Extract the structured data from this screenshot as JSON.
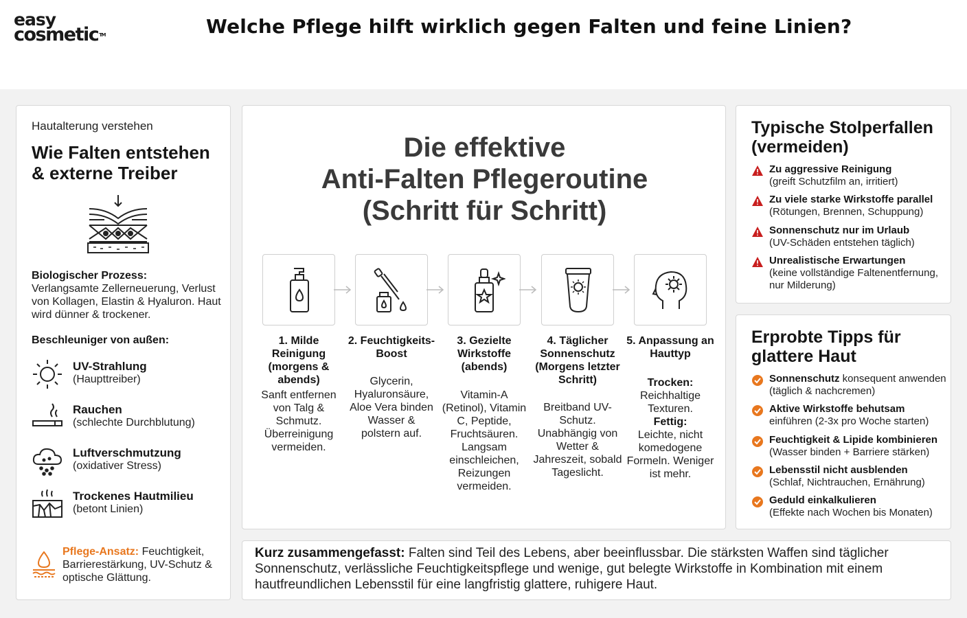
{
  "brand": {
    "line1": "easy",
    "line2": "cosmetic",
    "tm": "TM"
  },
  "header": {
    "title": "Welche Pflege hilft wirklich gegen Falten und feine Linien?"
  },
  "left": {
    "kicker": "Hautalterung verstehen",
    "title": "Wie Falten entstehen & externe Treiber",
    "bio_label": "Biologischer Prozess:",
    "bio_text": "Verlangsamte Zellerneuerung, Verlust von Kollagen, Elastin & Hyaluron. Haut wird dünner & trockener.",
    "accel_title": "Beschleuniger von außen:",
    "drivers": [
      {
        "icon": "sun-icon",
        "title": "UV-Strahlung",
        "sub": "(Haupttreiber)"
      },
      {
        "icon": "cigarette-icon",
        "title": "Rauchen",
        "sub": "(schlechte Durchblutung)"
      },
      {
        "icon": "smog-cloud-icon",
        "title": "Luftverschmutzung",
        "sub": "(oxidativer Stress)"
      },
      {
        "icon": "dry-skin-icon",
        "title": "Trockenes Hautmilieu",
        "sub": "(betont Linien)"
      }
    ],
    "care_label": "Pflege-Ansatz:",
    "care_text": "Feuchtigkeit, Barrierestärkung, UV-Schutz & optische Glättung."
  },
  "center": {
    "title_l1": "Die effektive",
    "title_l2": "Anti-Falten Pflegeroutine",
    "title_l3": "(Schritt für Schritt)",
    "steps": [
      {
        "icon": "pump-bottle-icon",
        "title": "1. Milde Reinigung (morgens & abends)",
        "desc": "Sanft entfernen von Talg & Schmutz. Überreinigung vermeiden."
      },
      {
        "icon": "dropper-bottle-icon",
        "title": "2. Feuchtigkeits-Boost",
        "desc": "Glycerin, Hyaluronsäure, Aloe Vera binden Wasser & polstern auf."
      },
      {
        "icon": "serum-bottle-icon",
        "title": "3. Gezielte Wirkstoffe (abends)",
        "desc": "Vitamin-A (Retinol), Vitamin C, Peptide, Fruchtsäuren. Langsam einschleichen, Reizungen vermeiden."
      },
      {
        "icon": "sunscreen-tube-icon",
        "title": "4. Täglicher Sonnenschutz (Morgens letzter Schritt)",
        "desc": "Breitband UV-Schutz. Unabhängig von Wetter & Jahreszeit, sobald Tageslicht."
      },
      {
        "icon": "head-gear-icon",
        "title": "5. Anpassung an Hauttyp",
        "dry_label": "Trocken:",
        "dry_text": "Reichhaltige Texturen.",
        "oily_label": "Fettig:",
        "oily_text": "Leichte, nicht komedogene Formeln. Weniger ist mehr."
      }
    ]
  },
  "pitfalls": {
    "title": "Typische Stolperfallen (vermeiden)",
    "items": [
      {
        "title": "Zu aggressive Reinigung",
        "sub": "(greift Schutzfilm an, irritiert)"
      },
      {
        "title": "Zu viele starke Wirkstoffe parallel",
        "sub": "(Rötungen, Brennen, Schuppung)"
      },
      {
        "title": "Sonnenschutz nur im Urlaub",
        "sub": "(UV-Schäden entstehen täglich)"
      },
      {
        "title": "Unrealistische Erwartungen",
        "sub": "(keine vollständige Faltenentfernung, nur Milderung)"
      }
    ]
  },
  "tips": {
    "title": "Erprobte Tipps für glattere Haut",
    "items": [
      {
        "title": "Sonnenschutz",
        "title_rest": " konsequent anwenden",
        "sub": "(täglich & nachcremen)"
      },
      {
        "title": "Aktive Wirkstoffe behutsam",
        "title_rest": "",
        "sub": "einführen (2-3x pro Woche starten)"
      },
      {
        "title": "Feuchtigkeit & Lipide kombinieren",
        "title_rest": "",
        "sub": "(Wasser binden + Barriere stärken)"
      },
      {
        "title": "Lebensstil nicht ausblenden",
        "title_rest": "",
        "sub": "(Schlaf, Nichtrauchen, Ernährung)"
      },
      {
        "title": "Geduld einkalkulieren",
        "title_rest": "",
        "sub": "(Effekte nach Wochen bis Monaten)"
      }
    ]
  },
  "summary": {
    "label": "Kurz zusammengefasst:",
    "text": " Falten sind Teil des Lebens, aber beeinflussbar. Die stärksten Waffen sind täglicher Sonnenschutz, verlässliche Feuchtigkeitspflege und wenige, gut belegte Wirkstoffe in Kombination mit einem hautfreundlichen Lebensstil für eine langfristig glattere, ruhigere Haut."
  },
  "colors": {
    "accent_orange": "#e8771e",
    "warning_red": "#c81e1e",
    "text_dark": "#1c1c1c",
    "canvas_bg": "#f2f2f2"
  }
}
